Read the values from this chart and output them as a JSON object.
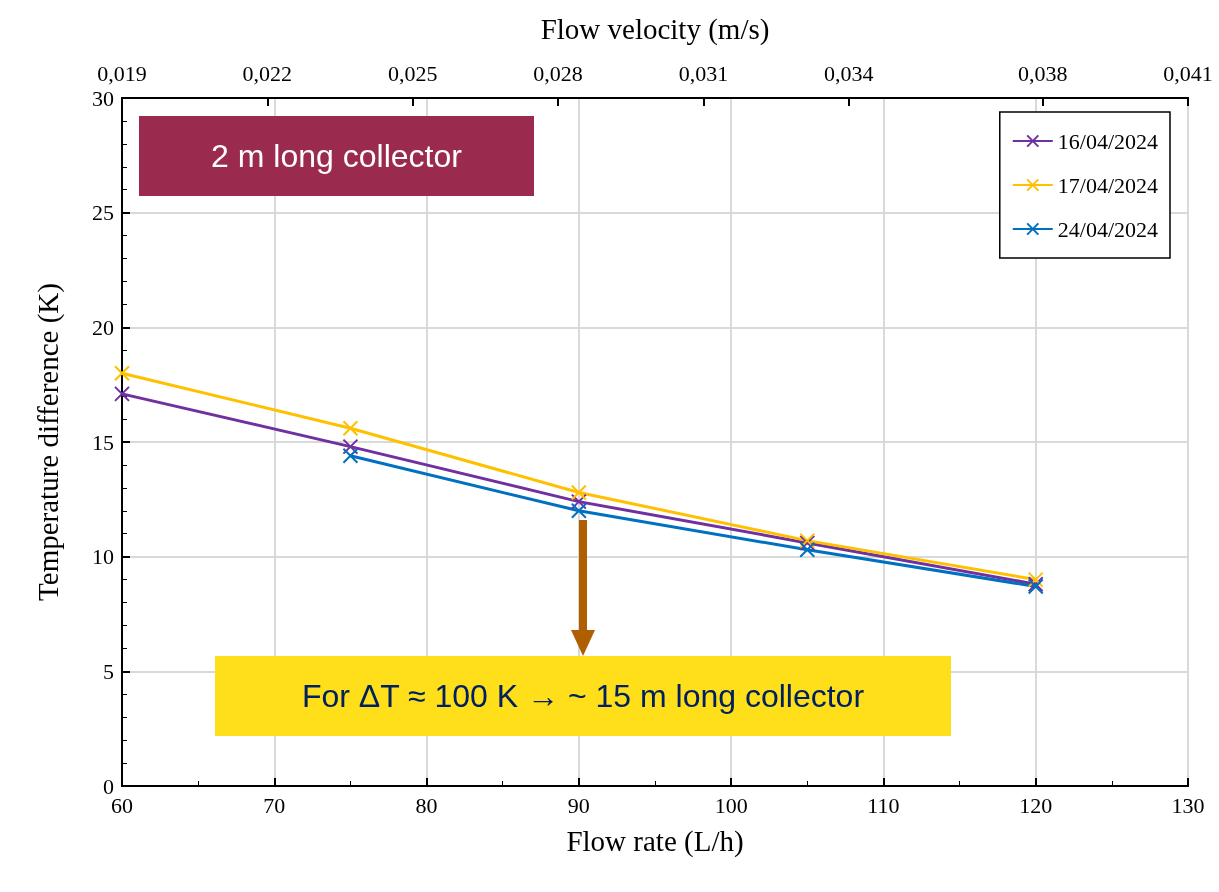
{
  "chart_data": {
    "type": "line",
    "xlabel": "Flow rate (L/h)",
    "x2label": "Flow velocity (m/s)",
    "ylabel": "Temperature difference (K)",
    "x": [
      60,
      75,
      90,
      105,
      120
    ],
    "series": [
      {
        "name": "16/04/2024",
        "color": "#7030a0",
        "values": [
          17.1,
          14.8,
          12.4,
          10.6,
          8.8
        ]
      },
      {
        "name": "17/04/2024",
        "color": "#ffc000",
        "values": [
          18.0,
          15.6,
          12.8,
          10.7,
          9.0
        ]
      },
      {
        "name": "24/04/2024",
        "color": "#0070c0",
        "values": [
          null,
          14.4,
          12.0,
          10.3,
          8.7
        ]
      }
    ],
    "xlim": [
      60,
      130
    ],
    "xticks": [
      60,
      70,
      80,
      90,
      100,
      110,
      120,
      130
    ],
    "ylim": [
      0,
      30
    ],
    "yticks": [
      0,
      5,
      10,
      15,
      20,
      25,
      30
    ],
    "x2lim": [
      0.019,
      0.041
    ],
    "x2ticks": [
      {
        "value": 0.019,
        "label": "0,019"
      },
      {
        "value": 0.022,
        "label": "0,022"
      },
      {
        "value": 0.025,
        "label": "0,025"
      },
      {
        "value": 0.028,
        "label": "0,028"
      },
      {
        "value": 0.031,
        "label": "0,031"
      },
      {
        "value": 0.034,
        "label": "0,034"
      },
      {
        "value": 0.038,
        "label": "0,038"
      },
      {
        "value": 0.041,
        "label": "0,041"
      }
    ],
    "annotations": [
      "2 m long collector",
      "For ΔT ≈ 100 K  →  ~ 15 m long collector"
    ],
    "grid": true,
    "legend": "top right",
    "marker": "cross",
    "line_style": "solid"
  }
}
